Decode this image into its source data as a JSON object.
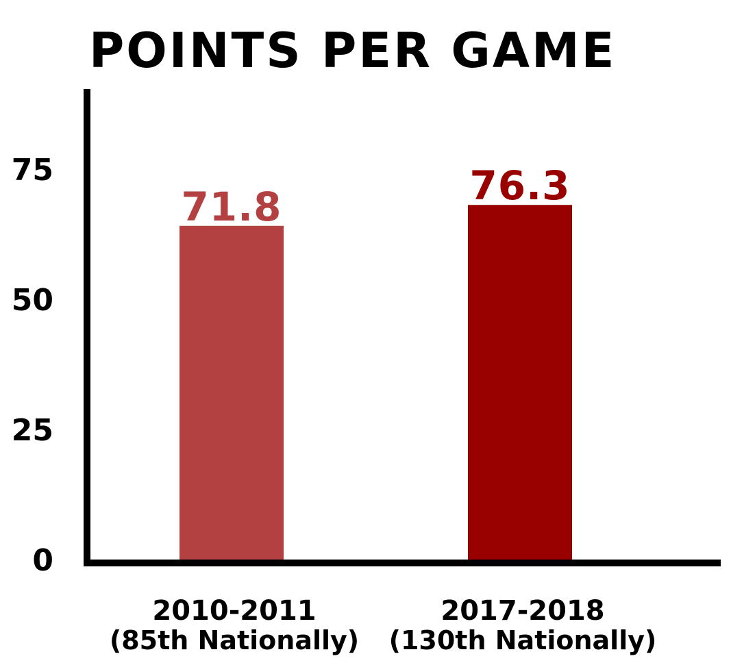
{
  "chart_data": {
    "type": "bar",
    "title": "POINTS PER GAME",
    "categories": [
      "2010-2011",
      "2017-2018"
    ],
    "category_sublabels": [
      "(85th Nationally)",
      "(130th Nationally)"
    ],
    "values": [
      71.8,
      76.3
    ],
    "data_labels": [
      "71.8",
      "76.3"
    ],
    "yticks": [
      "0",
      "25",
      "50",
      "75"
    ],
    "ylim": [
      0,
      90
    ],
    "grid": false,
    "legend": "none",
    "colors": [
      "#b34141",
      "#990000"
    ]
  }
}
